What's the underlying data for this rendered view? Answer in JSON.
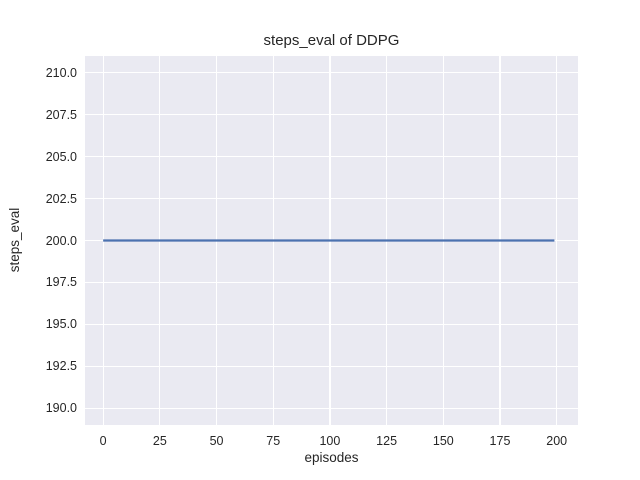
{
  "chart_data": {
    "type": "line",
    "title": "steps_eval of DDPG",
    "xlabel": "episodes",
    "ylabel": "steps_eval",
    "x": [
      0,
      199
    ],
    "series": [
      {
        "name": "steps_eval",
        "y": [
          200,
          200
        ],
        "color": "#4c72b0",
        "width": 2.2
      }
    ],
    "xlim": [
      -8,
      209.4
    ],
    "ylim": [
      189,
      211
    ],
    "xticks": [
      0,
      25,
      50,
      75,
      100,
      125,
      150,
      175,
      200
    ],
    "xtick_labels": [
      "0",
      "25",
      "50",
      "75",
      "100",
      "125",
      "150",
      "175",
      "200"
    ],
    "yticks": [
      190.0,
      192.5,
      195.0,
      197.5,
      200.0,
      202.5,
      205.0,
      207.5,
      210.0
    ],
    "ytick_labels": [
      "190.0",
      "192.5",
      "195.0",
      "197.5",
      "200.0",
      "202.5",
      "205.0",
      "207.5",
      "210.0"
    ],
    "grid": true,
    "legend": "none",
    "plot_bg": "#eaeaf2",
    "grid_color": "#ffffff",
    "text_color": "#262626",
    "figure_bg": "#ffffff"
  }
}
